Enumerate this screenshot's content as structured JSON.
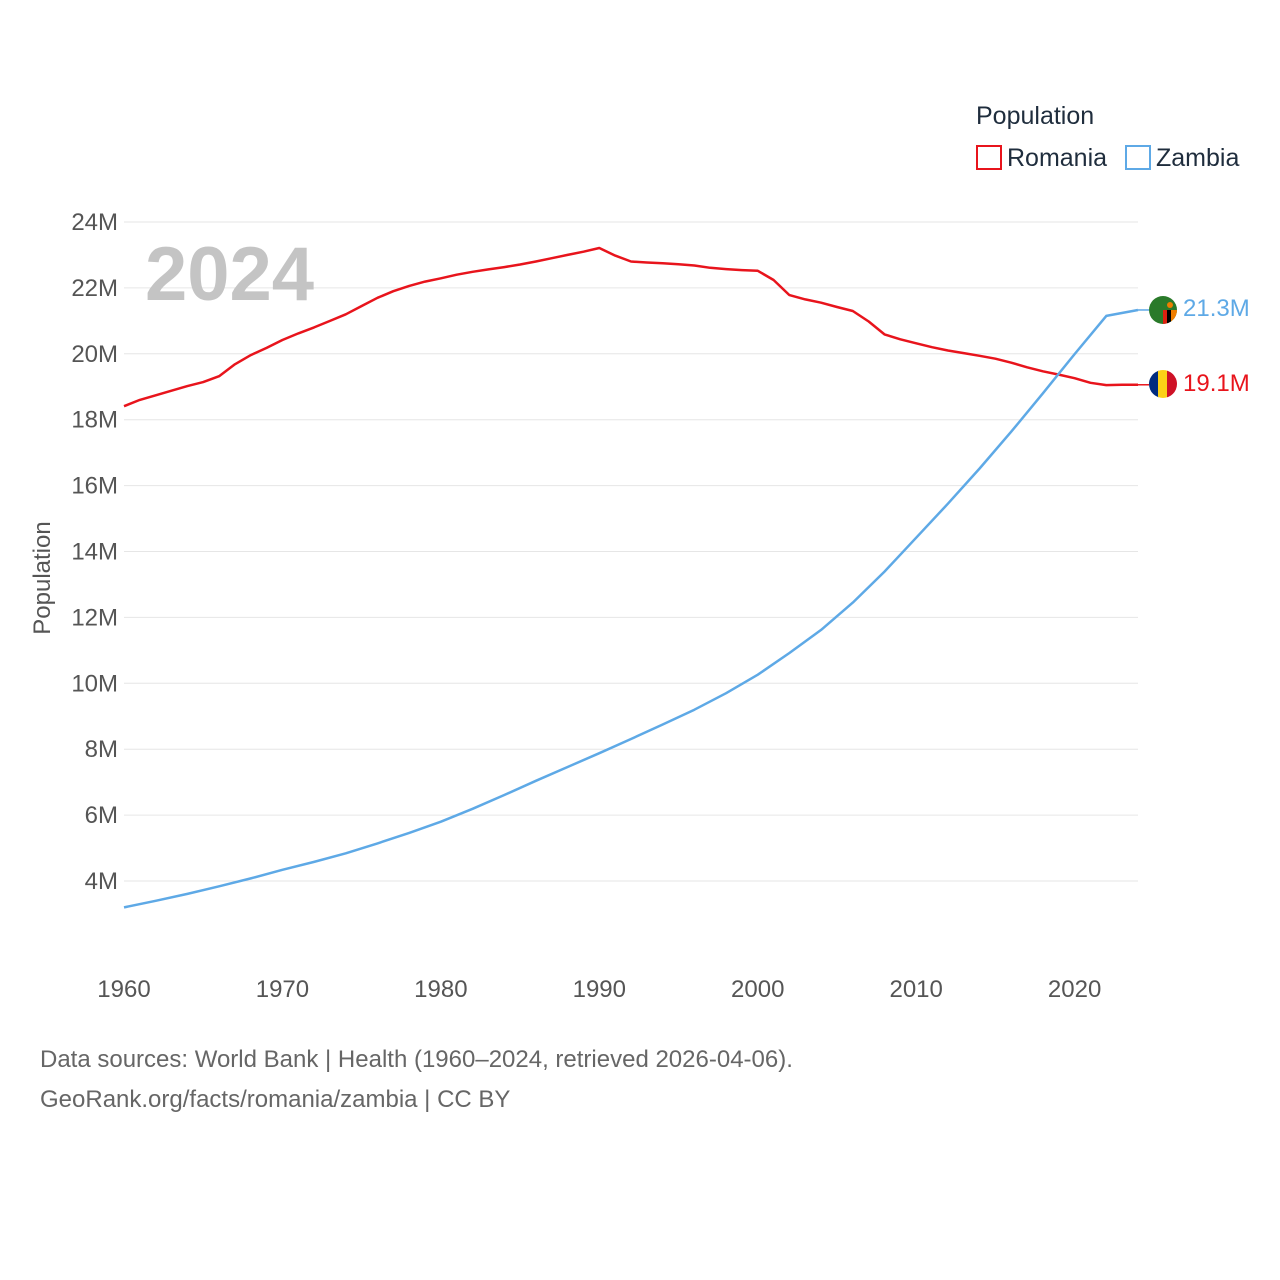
{
  "chart_data": {
    "type": "line",
    "legend_title": "Population",
    "current_year": "2024",
    "ylabel": "Population",
    "xlabel": "",
    "xlim": [
      1960,
      2024
    ],
    "ylim": [
      2500000,
      24000000
    ],
    "x_ticks": [
      1960,
      1970,
      1980,
      1990,
      2000,
      2010,
      2020
    ],
    "y_ticks": [
      4000000,
      6000000,
      8000000,
      10000000,
      12000000,
      14000000,
      16000000,
      18000000,
      20000000,
      22000000,
      24000000
    ],
    "y_tick_labels": [
      "4M",
      "6M",
      "8M",
      "10M",
      "12M",
      "14M",
      "16M",
      "18M",
      "20M",
      "22M",
      "24M"
    ],
    "grid": true,
    "series": [
      {
        "name": "Romania",
        "color": "#e8141c",
        "end_label": "19.1M",
        "x": [
          1960,
          1961,
          1962,
          1963,
          1964,
          1965,
          1966,
          1967,
          1968,
          1969,
          1970,
          1971,
          1972,
          1973,
          1974,
          1975,
          1976,
          1977,
          1978,
          1979,
          1980,
          1981,
          1982,
          1983,
          1984,
          1985,
          1986,
          1987,
          1988,
          1989,
          1990,
          1991,
          1992,
          1993,
          1994,
          1995,
          1996,
          1997,
          1998,
          1999,
          2000,
          2001,
          2002,
          2003,
          2004,
          2005,
          2006,
          2007,
          2008,
          2009,
          2010,
          2011,
          2012,
          2013,
          2014,
          2015,
          2016,
          2017,
          2018,
          2019,
          2020,
          2021,
          2022,
          2023,
          2024
        ],
        "values": [
          18410000,
          18600000,
          18740000,
          18880000,
          19020000,
          19140000,
          19320000,
          19680000,
          19960000,
          20180000,
          20420000,
          20620000,
          20800000,
          21000000,
          21200000,
          21450000,
          21700000,
          21900000,
          22060000,
          22190000,
          22290000,
          22400000,
          22490000,
          22560000,
          22630000,
          22710000,
          22800000,
          22900000,
          23000000,
          23100000,
          23210000,
          22980000,
          22800000,
          22770000,
          22750000,
          22720000,
          22680000,
          22610000,
          22570000,
          22540000,
          22520000,
          22240000,
          21780000,
          21650000,
          21550000,
          21420000,
          21300000,
          20980000,
          20590000,
          20440000,
          20320000,
          20200000,
          20100000,
          20020000,
          19940000,
          19850000,
          19730000,
          19590000,
          19470000,
          19370000,
          19260000,
          19120000,
          19050000,
          19060000,
          19060000
        ]
      },
      {
        "name": "Zambia",
        "color": "#5ea9e6",
        "end_label": "21.3M",
        "x": [
          1960,
          1962,
          1964,
          1966,
          1968,
          1970,
          1972,
          1974,
          1976,
          1978,
          1980,
          1982,
          1984,
          1986,
          1988,
          1990,
          1992,
          1994,
          1996,
          1998,
          2000,
          2002,
          2004,
          2006,
          2008,
          2010,
          2012,
          2014,
          2016,
          2018,
          2020,
          2022,
          2024
        ],
        "values": [
          3200000,
          3400000,
          3610000,
          3840000,
          4080000,
          4340000,
          4580000,
          4840000,
          5140000,
          5460000,
          5800000,
          6190000,
          6610000,
          7040000,
          7460000,
          7880000,
          8310000,
          8750000,
          9200000,
          9700000,
          10260000,
          10920000,
          11620000,
          12450000,
          13390000,
          14420000,
          15450000,
          16520000,
          17640000,
          18800000,
          19990000,
          21150000,
          21330000
        ]
      }
    ]
  },
  "legend": {
    "items": [
      {
        "label": "Romania",
        "color": "#e8141c"
      },
      {
        "label": "Zambia",
        "color": "#5ea9e6"
      }
    ]
  },
  "footer": {
    "line1": "Data sources: World Bank | Health (1960–2024, retrieved 2026-04-06).",
    "line2": "GeoRank.org/facts/romania/zambia | CC BY"
  }
}
